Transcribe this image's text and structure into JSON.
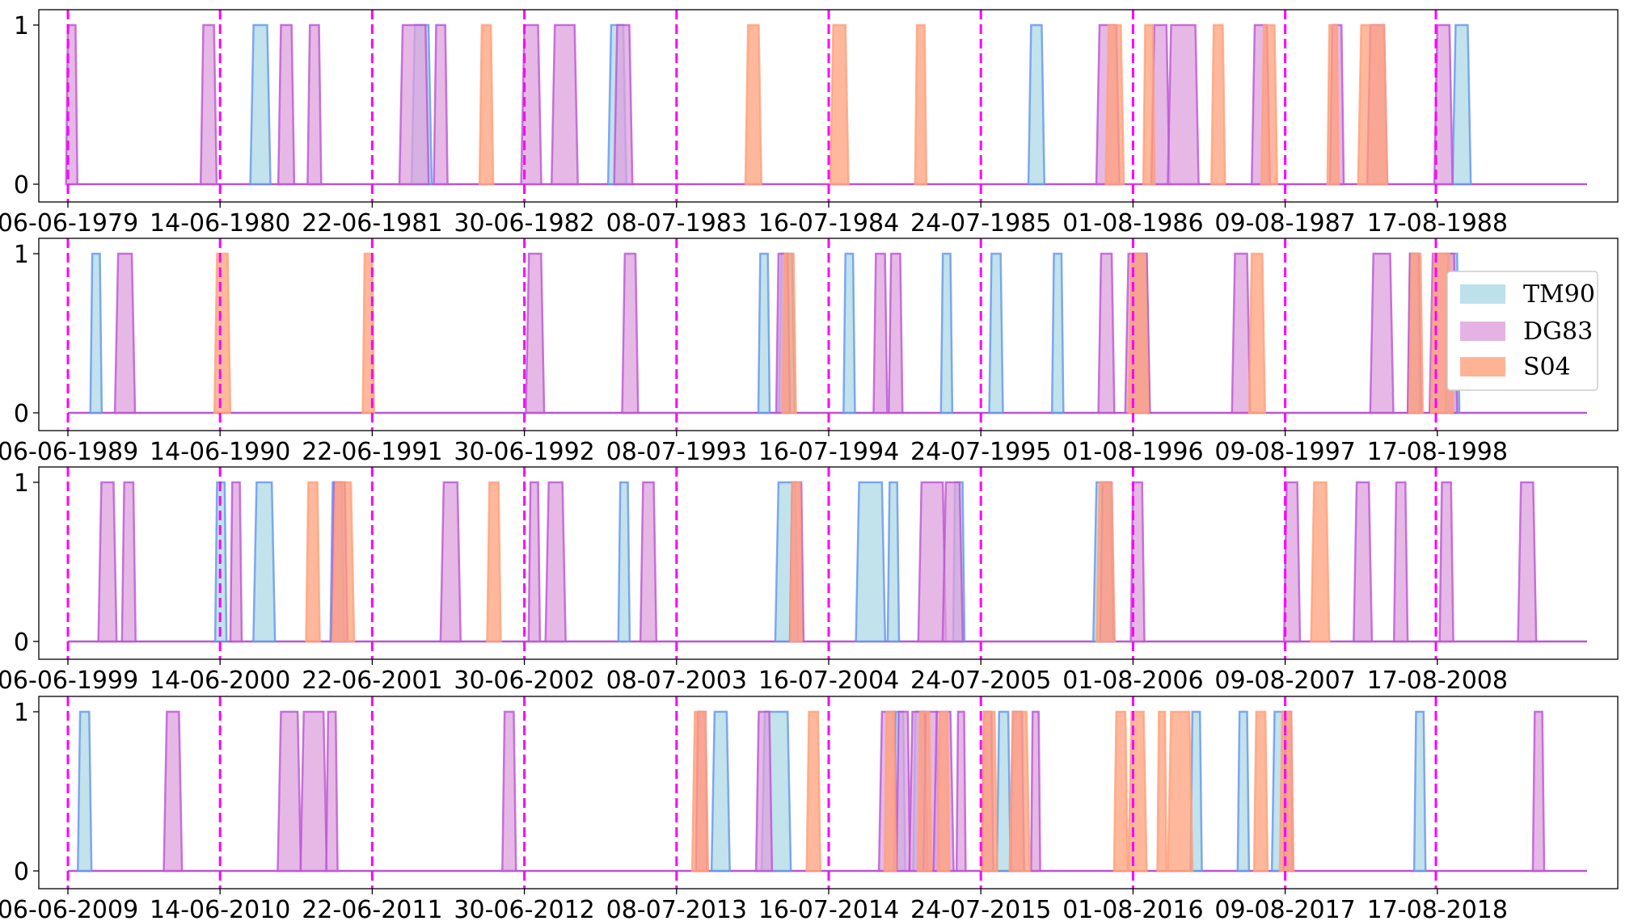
{
  "chart_data": {
    "type": "area",
    "description_note": "",
    "legend": {
      "placement": "right, second panel",
      "entries": [
        {
          "name": "TM90",
          "fill": "#add8e6",
          "stroke": "#6495ed"
        },
        {
          "name": "DG83",
          "fill": "#dda0dd",
          "stroke": "#ba55d3"
        },
        {
          "name": "S04",
          "fill": "#ffa07a",
          "stroke": "#ffa07a"
        }
      ]
    },
    "yticks": [
      "0",
      "1"
    ],
    "vline_color": "#ff00ff",
    "panels": [
      {
        "xticks": [
          "06-06-1979",
          "14-06-1980",
          "22-06-1981",
          "30-06-1982",
          "08-07-1983",
          "16-07-1984",
          "24-07-1985",
          "01-08-1986",
          "09-08-1987",
          "17-08-1988"
        ],
        "TM90": [
          [
            1.22,
            1.31
          ],
          [
            2.28,
            2.37
          ],
          [
            3.57,
            3.65
          ],
          [
            6.33,
            6.4
          ],
          [
            9.12,
            9.2
          ]
        ],
        "DG83": [
          [
            0.0,
            0.05
          ],
          [
            0.89,
            0.96
          ],
          [
            1.4,
            1.47
          ],
          [
            1.59,
            1.65
          ],
          [
            2.2,
            2.35
          ],
          [
            2.42,
            2.48
          ],
          [
            3.0,
            3.09
          ],
          [
            3.2,
            3.33
          ],
          [
            3.61,
            3.69
          ],
          [
            6.78,
            6.89
          ],
          [
            7.14,
            7.22
          ],
          [
            7.25,
            7.41
          ],
          [
            7.8,
            7.88
          ],
          [
            8.31,
            8.37
          ],
          [
            8.56,
            8.65
          ],
          [
            9.0,
            9.08
          ]
        ],
        "S04": [
          [
            2.72,
            2.78
          ],
          [
            4.47,
            4.54
          ],
          [
            5.03,
            5.11
          ],
          [
            5.58,
            5.63
          ],
          [
            6.84,
            6.92
          ],
          [
            7.08,
            7.13
          ],
          [
            7.53,
            7.59
          ],
          [
            7.86,
            7.93
          ],
          [
            8.29,
            8.34
          ],
          [
            8.5,
            8.65
          ]
        ]
      },
      {
        "xticks": [
          "06-06-1989",
          "14-06-1990",
          "22-06-1991",
          "30-06-1992",
          "08-07-1993",
          "16-07-1994",
          "24-07-1995",
          "01-08-1996",
          "09-08-1997",
          "17-08-1998"
        ],
        "TM90": [
          [
            0.16,
            0.21
          ],
          [
            4.55,
            4.6
          ],
          [
            4.69,
            4.76
          ],
          [
            5.11,
            5.16
          ],
          [
            5.75,
            5.8
          ],
          [
            6.07,
            6.13
          ],
          [
            6.48,
            6.53
          ],
          [
            7.01,
            7.09
          ],
          [
            8.82,
            8.87
          ],
          [
            9.07,
            9.13
          ]
        ],
        "DG83": [
          [
            0.33,
            0.42
          ],
          [
            3.03,
            3.11
          ],
          [
            3.66,
            3.73
          ],
          [
            4.67,
            4.73
          ],
          [
            5.31,
            5.37
          ],
          [
            5.41,
            5.47
          ],
          [
            6.79,
            6.86
          ],
          [
            6.97,
            7.09
          ],
          [
            7.67,
            7.75
          ],
          [
            8.58,
            8.69
          ],
          [
            8.82,
            8.88
          ],
          [
            8.97,
            9.11
          ]
        ],
        "S04": [
          [
            0.98,
            1.05
          ],
          [
            1.95,
            2.0
          ],
          [
            4.71,
            4.77
          ],
          [
            6.99,
            7.08
          ],
          [
            7.78,
            7.85
          ],
          [
            8.83,
            8.89
          ],
          [
            8.98,
            9.08
          ]
        ]
      },
      {
        "xticks": [
          "06-06-1999",
          "14-06-2000",
          "22-06-2001",
          "30-06-2002",
          "08-07-2003",
          "16-07-2004",
          "24-07-2005",
          "01-08-2006",
          "09-08-2007",
          "17-08-2008"
        ],
        "TM90": [
          [
            0.98,
            1.03
          ],
          [
            1.24,
            1.34
          ],
          [
            1.74,
            1.8
          ],
          [
            3.63,
            3.68
          ],
          [
            4.67,
            4.78
          ],
          [
            5.2,
            5.35
          ],
          [
            5.4,
            5.45
          ],
          [
            5.83,
            5.88
          ],
          [
            6.76,
            6.85
          ]
        ],
        "DG83": [
          [
            0.22,
            0.3
          ],
          [
            0.37,
            0.43
          ],
          [
            1.08,
            1.13
          ],
          [
            1.75,
            1.82
          ],
          [
            2.47,
            2.56
          ],
          [
            3.04,
            3.09
          ],
          [
            3.16,
            3.25
          ],
          [
            3.78,
            3.85
          ],
          [
            4.76,
            4.82
          ],
          [
            5.61,
            5.75
          ],
          [
            5.77,
            5.86
          ],
          [
            6.8,
            6.86
          ],
          [
            7.0,
            7.06
          ],
          [
            8.01,
            8.08
          ],
          [
            8.47,
            8.55
          ],
          [
            8.73,
            8.79
          ],
          [
            9.03,
            9.09
          ],
          [
            9.55,
            9.63
          ]
        ],
        "S04": [
          [
            1.58,
            1.64
          ],
          [
            1.76,
            1.86
          ],
          [
            2.77,
            2.83
          ],
          [
            4.76,
            4.81
          ],
          [
            6.78,
            6.86
          ],
          [
            8.19,
            8.27
          ]
        ]
      },
      {
        "xticks": [
          "06-06-2009",
          "14-06-2010",
          "22-06-2011",
          "30-06-2012",
          "08-07-2013",
          "16-07-2014",
          "24-07-2015",
          "01-08-2016",
          "09-08-2017",
          "17-08-2018"
        ],
        "TM90": [
          [
            0.08,
            0.14
          ],
          [
            4.25,
            4.33
          ],
          [
            4.58,
            4.73
          ],
          [
            5.44,
            5.49
          ],
          [
            5.57,
            5.63
          ],
          [
            6.12,
            6.18
          ],
          [
            7.39,
            7.44
          ],
          [
            7.7,
            7.75
          ],
          [
            7.93,
            8.0
          ],
          [
            8.86,
            8.91
          ]
        ],
        "DG83": [
          [
            0.65,
            0.73
          ],
          [
            1.4,
            1.51
          ],
          [
            1.55,
            1.68
          ],
          [
            1.71,
            1.76
          ],
          [
            2.87,
            2.93
          ],
          [
            4.14,
            4.19
          ],
          [
            4.54,
            4.61
          ],
          [
            5.35,
            5.43
          ],
          [
            5.46,
            5.52
          ],
          [
            5.55,
            5.63
          ],
          [
            5.64,
            5.71
          ],
          [
            5.71,
            5.8
          ],
          [
            5.85,
            5.89
          ],
          [
            6.02,
            6.07
          ],
          [
            6.21,
            6.27
          ],
          [
            6.34,
            6.38
          ],
          [
            8.0,
            8.04
          ],
          [
            9.64,
            9.69
          ]
        ],
        "S04": [
          [
            4.12,
            4.19
          ],
          [
            4.87,
            4.93
          ],
          [
            5.38,
            5.43
          ],
          [
            5.6,
            5.66
          ],
          [
            5.73,
            5.78
          ],
          [
            6.02,
            6.09
          ],
          [
            6.21,
            6.3
          ],
          [
            6.89,
            6.95
          ],
          [
            6.99,
            7.07
          ],
          [
            7.17,
            7.21
          ],
          [
            7.25,
            7.37
          ],
          [
            7.81,
            7.87
          ],
          [
            7.98,
            8.04
          ]
        ]
      }
    ]
  }
}
